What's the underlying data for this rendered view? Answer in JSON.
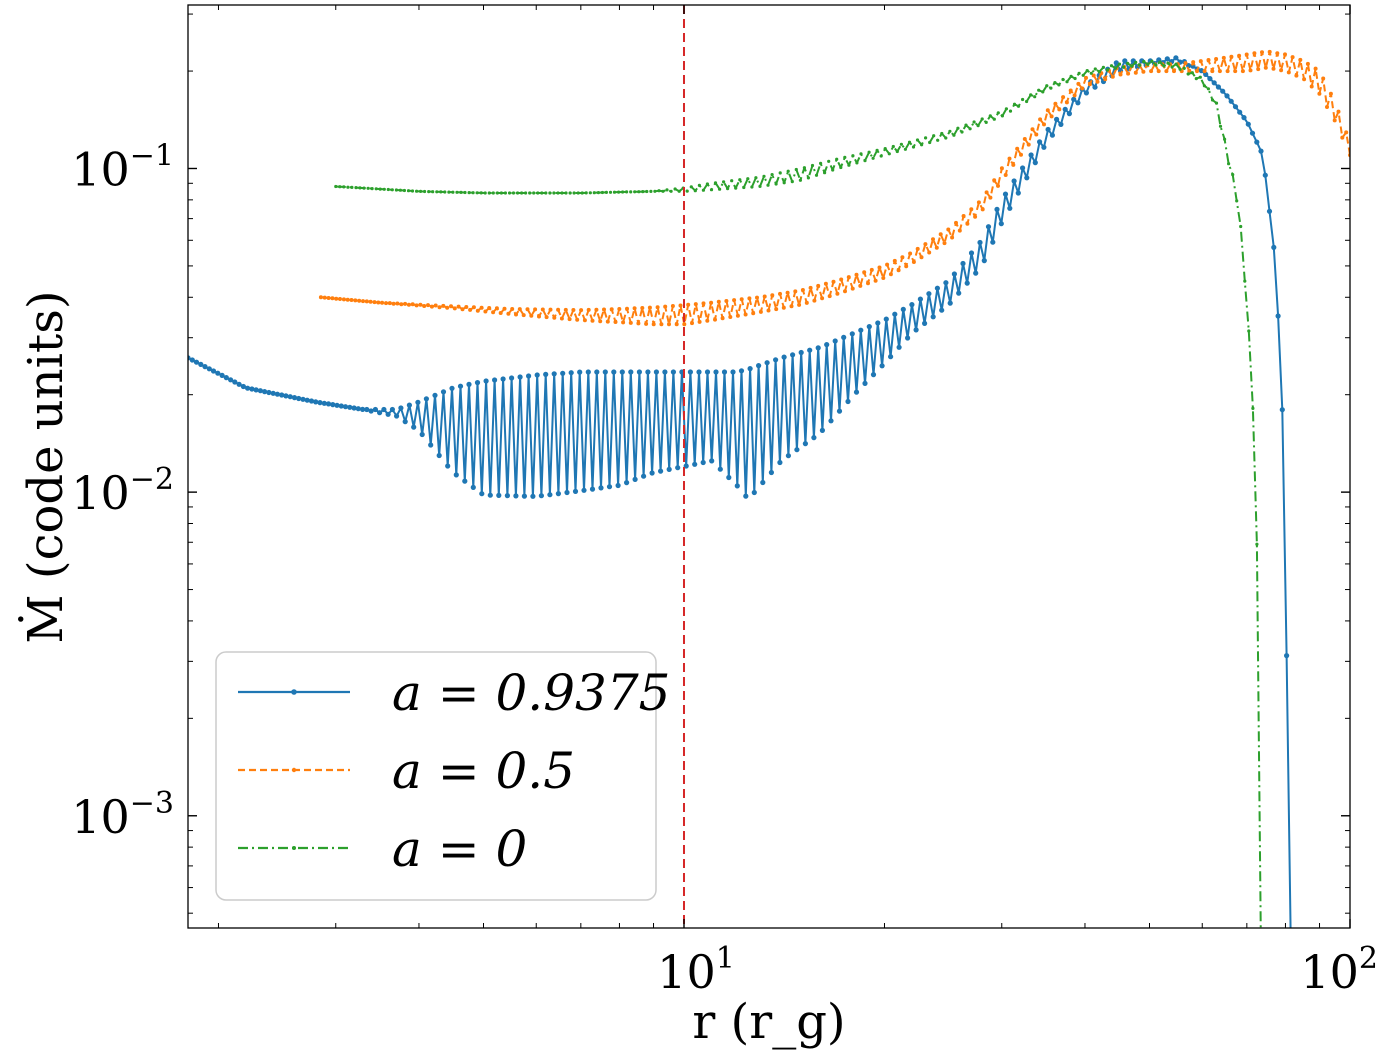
{
  "chart_data": {
    "type": "line",
    "title": "",
    "xlabel": "r (r_g)",
    "ylabel": "Ṁ (code units)",
    "xscale": "log",
    "yscale": "log",
    "xlim": [
      1.8,
      100
    ],
    "ylim": [
      0.00045,
      0.32
    ],
    "x_ticks": [
      {
        "value": 10,
        "base": "10",
        "exp": "1"
      },
      {
        "value": 100,
        "base": "10",
        "exp": "2"
      }
    ],
    "y_ticks": [
      {
        "value": 0.001,
        "base": "10",
        "exp": "−3"
      },
      {
        "value": 0.01,
        "base": "10",
        "exp": "−2"
      },
      {
        "value": 0.1,
        "base": "10",
        "exp": "−1"
      }
    ],
    "vline": {
      "x": 10,
      "color": "#d62728",
      "style": "dashed"
    },
    "legend_location": "lower-left",
    "series": [
      {
        "name": "a = 0.9375",
        "legend_label": "a = 0.9375",
        "color": "#1f77b4",
        "style": "solid",
        "x": [
          1.8,
          2.2,
          2.8,
          3.3,
          3.7,
          4.0,
          4.5,
          5.0,
          6.0,
          7.0,
          8.0,
          9.0,
          10.0,
          11.0,
          12.0,
          12.5,
          14.0,
          16.0,
          18.0,
          20.0,
          22.0,
          25.0,
          28.0,
          30.0,
          35.0,
          40.0,
          45.0,
          50.0,
          55.0,
          60.0,
          65.0,
          70.0,
          74.0,
          77.0,
          79.0,
          80.0,
          81.0,
          81.5
        ],
        "y_upper": [
          0.026,
          0.021,
          0.019,
          0.018,
          0.018,
          0.019,
          0.021,
          0.022,
          0.023,
          0.0235,
          0.0235,
          0.0235,
          0.0235,
          0.0235,
          0.0235,
          0.024,
          0.026,
          0.028,
          0.031,
          0.034,
          0.038,
          0.045,
          0.06,
          0.08,
          0.13,
          0.18,
          0.215,
          0.215,
          0.22,
          0.2,
          0.17,
          0.14,
          0.11,
          0.055,
          0.022,
          0.005,
          0.0011,
          0.0004
        ],
        "y_lower": [
          0.026,
          0.021,
          0.019,
          0.018,
          0.0172,
          0.0155,
          0.0115,
          0.0098,
          0.0097,
          0.0101,
          0.0105,
          0.0115,
          0.012,
          0.0125,
          0.0105,
          0.0095,
          0.0125,
          0.0152,
          0.02,
          0.025,
          0.031,
          0.038,
          0.05,
          0.068,
          0.12,
          0.17,
          0.2,
          0.21,
          0.215,
          0.2,
          0.17,
          0.14,
          0.11,
          0.055,
          0.022,
          0.005,
          0.0011,
          0.0004
        ]
      },
      {
        "name": "a = 0.5",
        "legend_label": "a = 0.5",
        "color": "#ff7f0e",
        "style": "dashed",
        "x": [
          2.85,
          3.5,
          4.5,
          5.5,
          7.0,
          8.0,
          9.0,
          10.0,
          11.0,
          13.0,
          15.0,
          17.0,
          20.0,
          22.0,
          25.0,
          28.0,
          30.0,
          35.0,
          40.0,
          45.0,
          50.0,
          55.0,
          60.0,
          65.0,
          70.0,
          75.0,
          80.0,
          85.0,
          90.0,
          95.0,
          100.0
        ],
        "y_upper": [
          0.04,
          0.0385,
          0.0375,
          0.0368,
          0.0365,
          0.0368,
          0.0372,
          0.0378,
          0.0385,
          0.04,
          0.042,
          0.045,
          0.05,
          0.055,
          0.065,
          0.08,
          0.1,
          0.15,
          0.19,
          0.205,
          0.21,
          0.21,
          0.215,
          0.22,
          0.225,
          0.23,
          0.225,
          0.215,
          0.2,
          0.16,
          0.12
        ],
        "y_lower": [
          0.04,
          0.0385,
          0.037,
          0.0355,
          0.034,
          0.0335,
          0.033,
          0.033,
          0.034,
          0.036,
          0.038,
          0.041,
          0.046,
          0.051,
          0.06,
          0.074,
          0.092,
          0.14,
          0.18,
          0.195,
          0.2,
          0.2,
          0.2,
          0.2,
          0.2,
          0.205,
          0.2,
          0.19,
          0.17,
          0.14,
          0.11
        ]
      },
      {
        "name": "a = 0",
        "legend_label": "a = 0",
        "color": "#2ca02c",
        "style": "dashdot",
        "x": [
          3.0,
          4.0,
          5.0,
          7.0,
          9.0,
          10.0,
          11.0,
          13.0,
          15.0,
          17.0,
          20.0,
          25.0,
          30.0,
          35.0,
          40.0,
          45.0,
          50.0,
          55.0,
          60.0,
          63.0,
          65.0,
          68.0,
          70.0,
          72.0,
          73.0,
          73.5
        ],
        "y_upper": [
          0.088,
          0.085,
          0.084,
          0.084,
          0.085,
          0.087,
          0.09,
          0.094,
          0.1,
          0.107,
          0.115,
          0.13,
          0.15,
          0.18,
          0.2,
          0.21,
          0.215,
          0.21,
          0.19,
          0.16,
          0.12,
          0.08,
          0.04,
          0.015,
          0.003,
          0.0004
        ],
        "y_lower": [
          0.088,
          0.085,
          0.084,
          0.084,
          0.085,
          0.085,
          0.086,
          0.088,
          0.092,
          0.1,
          0.11,
          0.125,
          0.145,
          0.175,
          0.195,
          0.205,
          0.21,
          0.205,
          0.185,
          0.155,
          0.115,
          0.075,
          0.038,
          0.014,
          0.003,
          0.0004
        ]
      }
    ]
  }
}
